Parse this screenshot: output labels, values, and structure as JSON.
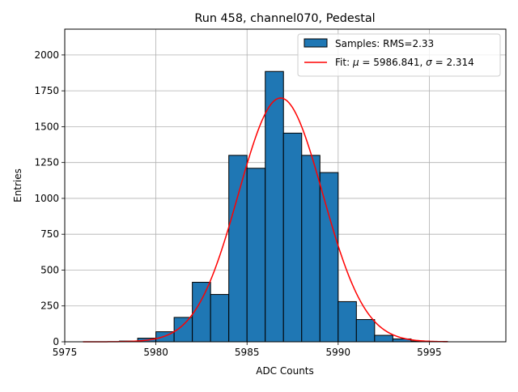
{
  "chart_data": {
    "type": "bar",
    "title": "Run 458, channel070, Pedestal",
    "xlabel": "ADC Counts",
    "ylabel": "Entries",
    "xlim": [
      5975,
      5999.2
    ],
    "ylim": [
      0,
      2180
    ],
    "xticks": [
      5975,
      5980,
      5985,
      5990,
      5995
    ],
    "yticks": [
      0,
      250,
      500,
      750,
      1000,
      1250,
      1500,
      1750,
      2000
    ],
    "grid": true,
    "legend_position": "top-right",
    "bin_width": 1,
    "bins": [
      {
        "x": 5978,
        "value": 5
      },
      {
        "x": 5979,
        "value": 25
      },
      {
        "x": 5980,
        "value": 70
      },
      {
        "x": 5981,
        "value": 170
      },
      {
        "x": 5982,
        "value": 415
      },
      {
        "x": 5983,
        "value": 330
      },
      {
        "x": 5984,
        "value": 1300
      },
      {
        "x": 5985,
        "value": 1210
      },
      {
        "x": 5986,
        "value": 1885
      },
      {
        "x": 5987,
        "value": 1455
      },
      {
        "x": 5988,
        "value": 1300
      },
      {
        "x": 5989,
        "value": 1180
      },
      {
        "x": 5990,
        "value": 280
      },
      {
        "x": 5991,
        "value": 155
      },
      {
        "x": 5992,
        "value": 45
      },
      {
        "x": 5993,
        "value": 20
      },
      {
        "x": 5994,
        "value": 5
      },
      {
        "x": 5995,
        "value": 2
      }
    ],
    "fit": {
      "mu": 5986.841,
      "sigma": 2.314,
      "amplitude": 1700,
      "x_range": [
        5976,
        5996
      ]
    },
    "legend": [
      {
        "label": "Samples: RMS=2.33",
        "color": "#1f77b4",
        "kind": "patch"
      },
      {
        "label_prefix": "Fit: ",
        "mu_symbol": "μ",
        "mu_text": " = 5986.841, ",
        "sigma_symbol": "σ",
        "sigma_text": " = 2.314",
        "color": "#ff0000",
        "kind": "line"
      }
    ],
    "colors": {
      "bar_fill": "#1f77b4",
      "bar_edge": "#000000",
      "fit_line": "#ff0000",
      "grid": "#b0b0b0"
    }
  }
}
